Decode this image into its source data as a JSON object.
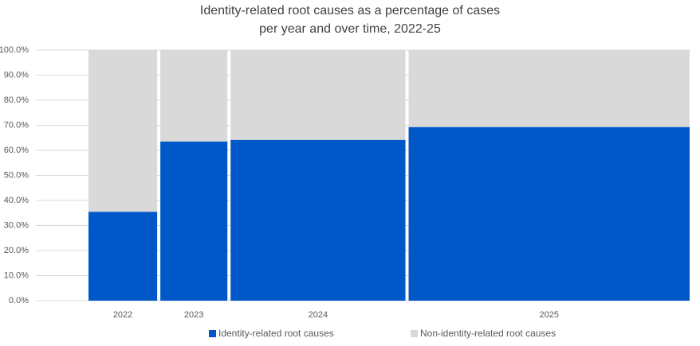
{
  "chart_data": {
    "type": "marimekko",
    "title": [
      "Identity-related root causes as a percentage of cases",
      "per year and over time, 2022-25"
    ],
    "categories": [
      "2022",
      "2023",
      "2024",
      "2025"
    ],
    "widths": [
      86,
      84,
      219,
      352
    ],
    "series": [
      {
        "name": "Identity-related root causes",
        "color": "#0058c8",
        "values": [
          35.5,
          63.5,
          64.2,
          69.3
        ]
      },
      {
        "name": "Non-identity-related root causes",
        "color": "#d9d9d9",
        "values": [
          64.5,
          36.5,
          35.8,
          30.7
        ]
      }
    ],
    "ylim": [
      0,
      100
    ],
    "yticks": [
      {
        "value": 0,
        "label": "0.0%"
      },
      {
        "value": 10,
        "label": "10.0%"
      },
      {
        "value": 20,
        "label": "20.0%"
      },
      {
        "value": 30,
        "label": "30.0%"
      },
      {
        "value": 40,
        "label": "40.0%"
      },
      {
        "value": 50,
        "label": "50.0%"
      },
      {
        "value": 60,
        "label": "60.0%"
      },
      {
        "value": 70,
        "label": "70.0%"
      },
      {
        "value": 80,
        "label": "80.0%"
      },
      {
        "value": 90,
        "label": "90.0%"
      },
      {
        "value": 100,
        "label": "100.0%"
      }
    ],
    "grid": true
  }
}
